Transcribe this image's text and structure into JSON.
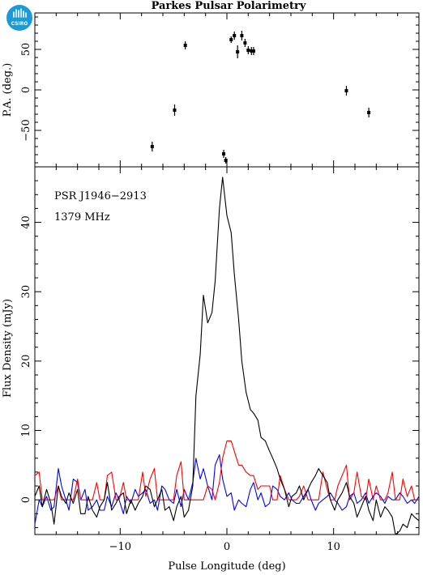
{
  "page_title": "Parkes Pulsar Polarimetry",
  "logo": {
    "text": "CSIRO",
    "icon": "csiro-logo-icon",
    "color": "#1a9ad6"
  },
  "chart_data": [
    {
      "type": "scatter",
      "panel": "top",
      "title": "Parkes Pulsar Polarimetry",
      "ylabel": "P.A. (deg.)",
      "xlabel": "",
      "xlim": [
        -18,
        18
      ],
      "ylim": [
        -95,
        95
      ],
      "yticks": [
        -50,
        0,
        50
      ],
      "xticks": [
        -10,
        0,
        10
      ],
      "series": [
        {
          "color": "#000000",
          "x": [
            -7.0,
            -4.9,
            -3.9,
            -0.3,
            -0.1,
            0.4,
            0.7,
            1.0,
            1.4,
            1.7,
            2.0,
            2.3,
            2.5,
            11.2,
            13.3
          ],
          "y": [
            -70,
            -25,
            55,
            -79,
            -87,
            62,
            67,
            47,
            67,
            58,
            49,
            48,
            48,
            -1,
            -28
          ],
          "err": [
            6,
            7,
            5,
            5,
            4,
            4,
            5,
            8,
            6,
            5,
            5,
            5,
            5,
            6,
            6
          ]
        }
      ]
    },
    {
      "type": "line",
      "panel": "bottom",
      "annotations": [
        "PSR J1946−2913",
        "1379 MHz"
      ],
      "xlabel": "Pulse Longitude (deg)",
      "ylabel": "Flux Density (mJy)",
      "xlim": [
        -18,
        18
      ],
      "ylim": [
        -5,
        48
      ],
      "yticks": [
        0,
        10,
        20,
        30,
        40
      ],
      "xticks": [
        -10,
        0,
        10
      ],
      "series": [
        {
          "color": "#000000",
          "x": [
            -18,
            -17.6,
            -17.3,
            -16.9,
            -16.5,
            -16.2,
            -15.8,
            -15.5,
            -15.1,
            -14.8,
            -14.4,
            -14.0,
            -13.7,
            -13.3,
            -13.0,
            -12.6,
            -12.2,
            -11.9,
            -11.5,
            -11.2,
            -10.8,
            -10.4,
            -10.1,
            -9.7,
            -9.4,
            -9.0,
            -8.6,
            -8.3,
            -7.9,
            -7.6,
            -7.2,
            -6.8,
            -6.5,
            -6.1,
            -5.8,
            -5.4,
            -5.0,
            -4.7,
            -4.3,
            -4.0,
            -3.6,
            -3.2,
            -2.9,
            -2.5,
            -2.2,
            -1.8,
            -1.4,
            -1.1,
            -0.7,
            -0.4,
            0.0,
            0.4,
            0.7,
            1.1,
            1.4,
            1.8,
            2.2,
            2.5,
            2.9,
            3.2,
            3.6,
            4.0,
            4.3,
            4.7,
            5.0,
            5.4,
            5.8,
            6.1,
            6.5,
            6.8,
            7.2,
            7.6,
            7.9,
            8.3,
            8.6,
            9.0,
            9.4,
            9.7,
            10.1,
            10.4,
            10.8,
            11.2,
            11.5,
            11.9,
            12.2,
            12.6,
            13.0,
            13.3,
            13.7,
            14.0,
            14.4,
            14.8,
            15.1,
            15.5,
            15.8,
            16.2,
            16.5,
            16.9,
            17.3,
            17.6,
            18.0
          ],
          "y": [
            0.5,
            2.0,
            -1.0,
            1.5,
            -0.5,
            -3.5,
            2.0,
            0.5,
            -0.5,
            1.0,
            -0.5,
            1.5,
            -2.0,
            -2.0,
            0.5,
            -1.5,
            -2.5,
            -1.0,
            0.0,
            2.5,
            -1.5,
            -0.5,
            0.5,
            1.0,
            -2.0,
            0.0,
            -1.5,
            -0.5,
            0.5,
            2.0,
            1.5,
            -1.0,
            0.0,
            1.5,
            -1.5,
            -1.0,
            -3.0,
            -1.0,
            0.5,
            -2.5,
            -1.5,
            2.0,
            15.0,
            21.0,
            29.5,
            25.5,
            27.0,
            31.5,
            42.0,
            46.5,
            41.0,
            38.5,
            32.5,
            26.0,
            20.0,
            15.5,
            13.0,
            12.5,
            11.5,
            9.0,
            8.5,
            7.0,
            6.0,
            4.5,
            3.0,
            1.5,
            -1.0,
            0.5,
            1.0,
            2.0,
            0.0,
            1.5,
            2.5,
            3.5,
            4.5,
            3.5,
            2.5,
            0.0,
            -1.5,
            0.0,
            1.0,
            2.5,
            0.5,
            -0.5,
            -2.5,
            -1.0,
            0.5,
            -1.5,
            -3.0,
            0.0,
            -2.5,
            -1.0,
            -1.5,
            -2.5,
            -5.0,
            -4.5,
            -3.5,
            -4.0,
            -2.0,
            -2.5,
            -3.0
          ]
        },
        {
          "color": "#ff0000",
          "x": [
            -18,
            -17.6,
            -17.3,
            -16.9,
            -16.5,
            -16.2,
            -15.8,
            -15.5,
            -15.1,
            -14.8,
            -14.4,
            -14.0,
            -13.7,
            -13.3,
            -13.0,
            -12.6,
            -12.2,
            -11.9,
            -11.5,
            -11.2,
            -10.8,
            -10.4,
            -10.1,
            -9.7,
            -9.4,
            -9.0,
            -8.6,
            -8.3,
            -7.9,
            -7.6,
            -7.2,
            -6.8,
            -6.5,
            -6.1,
            -5.8,
            -5.4,
            -5.0,
            -4.7,
            -4.3,
            -4.0,
            -3.6,
            -3.2,
            -2.9,
            -2.5,
            -2.2,
            -1.8,
            -1.4,
            -1.1,
            -0.7,
            -0.4,
            0.0,
            0.4,
            0.7,
            1.1,
            1.4,
            1.8,
            2.2,
            2.5,
            2.9,
            3.2,
            3.6,
            4.0,
            4.3,
            4.7,
            5.0,
            5.4,
            5.8,
            6.1,
            6.5,
            6.8,
            7.2,
            7.6,
            7.9,
            8.3,
            8.6,
            9.0,
            9.4,
            9.7,
            10.1,
            10.4,
            10.8,
            11.2,
            11.5,
            11.9,
            12.2,
            12.6,
            13.0,
            13.3,
            13.7,
            14.0,
            14.4,
            14.8,
            15.1,
            15.5,
            15.8,
            16.2,
            16.5,
            16.9,
            17.3,
            17.6,
            18.0
          ],
          "y": [
            3.5,
            4.0,
            0.0,
            0.0,
            0.0,
            0.0,
            2.0,
            0.0,
            0.0,
            0.0,
            0.0,
            3.0,
            0.0,
            0.0,
            0.0,
            0.0,
            2.5,
            0.0,
            0.0,
            3.5,
            4.0,
            0.0,
            0.0,
            2.5,
            0.0,
            0.0,
            0.0,
            0.0,
            4.0,
            0.5,
            3.0,
            4.5,
            0.0,
            0.0,
            0.0,
            0.0,
            0.0,
            3.5,
            5.5,
            0.0,
            0.0,
            0.0,
            0.0,
            0.0,
            0.0,
            2.0,
            1.5,
            0.0,
            2.5,
            6.0,
            8.5,
            8.5,
            7.0,
            5.0,
            5.0,
            4.0,
            3.5,
            3.5,
            1.5,
            2.0,
            2.0,
            2.0,
            0.0,
            0.0,
            3.5,
            1.5,
            0.0,
            0.0,
            0.0,
            0.5,
            2.0,
            0.0,
            0.0,
            0.0,
            0.0,
            4.0,
            1.5,
            0.0,
            0.0,
            2.0,
            3.5,
            5.0,
            0.0,
            1.0,
            4.0,
            0.5,
            0.0,
            3.0,
            0.0,
            2.0,
            0.0,
            0.0,
            1.0,
            4.0,
            0.0,
            0.0,
            3.0,
            0.5,
            2.0,
            0.0,
            0.0
          ]
        },
        {
          "color": "#0000ff",
          "x": [
            -18,
            -17.6,
            -17.3,
            -16.9,
            -16.5,
            -16.2,
            -15.8,
            -15.5,
            -15.1,
            -14.8,
            -14.4,
            -14.0,
            -13.7,
            -13.3,
            -13.0,
            -12.6,
            -12.2,
            -11.9,
            -11.5,
            -11.2,
            -10.8,
            -10.4,
            -10.1,
            -9.7,
            -9.4,
            -9.0,
            -8.6,
            -8.3,
            -7.9,
            -7.6,
            -7.2,
            -6.8,
            -6.5,
            -6.1,
            -5.8,
            -5.4,
            -5.0,
            -4.7,
            -4.3,
            -4.0,
            -3.6,
            -3.2,
            -2.9,
            -2.5,
            -2.2,
            -1.8,
            -1.4,
            -1.1,
            -0.7,
            -0.4,
            0.0,
            0.4,
            0.7,
            1.1,
            1.4,
            1.8,
            2.2,
            2.5,
            2.9,
            3.2,
            3.6,
            4.0,
            4.3,
            4.7,
            5.0,
            5.4,
            5.8,
            6.1,
            6.5,
            6.8,
            7.2,
            7.6,
            7.9,
            8.3,
            8.6,
            9.0,
            9.4,
            9.7,
            10.1,
            10.4,
            10.8,
            11.2,
            11.5,
            11.9,
            12.2,
            12.6,
            13.0,
            13.3,
            13.7,
            14.0,
            14.4,
            14.8,
            15.1,
            15.5,
            15.8,
            16.2,
            16.5,
            16.9,
            17.3,
            17.6,
            18.0
          ],
          "y": [
            -3.5,
            0.0,
            -1.0,
            0.5,
            -1.5,
            -1.0,
            4.5,
            2.0,
            0.0,
            -1.5,
            3.0,
            2.5,
            0.0,
            1.5,
            -1.5,
            -1.0,
            0.0,
            -1.5,
            -1.5,
            0.5,
            -1.0,
            1.0,
            0.0,
            -2.0,
            0.5,
            -0.5,
            1.5,
            0.5,
            1.0,
            1.5,
            -0.5,
            0.0,
            -1.5,
            2.0,
            1.5,
            0.0,
            -0.5,
            1.5,
            -1.0,
            1.5,
            0.0,
            2.5,
            6.0,
            3.0,
            4.5,
            2.0,
            0.0,
            5.0,
            6.5,
            3.0,
            0.5,
            1.0,
            -1.5,
            0.0,
            -0.5,
            -1.0,
            1.5,
            2.5,
            0.0,
            1.0,
            -1.0,
            -0.5,
            2.0,
            1.5,
            0.5,
            0.0,
            1.0,
            0.0,
            -0.5,
            -0.5,
            0.5,
            1.5,
            0.0,
            -1.5,
            -0.5,
            0.0,
            0.5,
            1.0,
            0.0,
            -0.5,
            -1.5,
            -1.0,
            0.5,
            1.0,
            -0.5,
            0.0,
            1.0,
            -0.5,
            0.5,
            1.0,
            0.5,
            -0.5,
            0.5,
            0.0,
            0.0,
            1.0,
            0.5,
            -0.5,
            0.0,
            -0.5,
            0.5
          ]
        }
      ]
    }
  ]
}
